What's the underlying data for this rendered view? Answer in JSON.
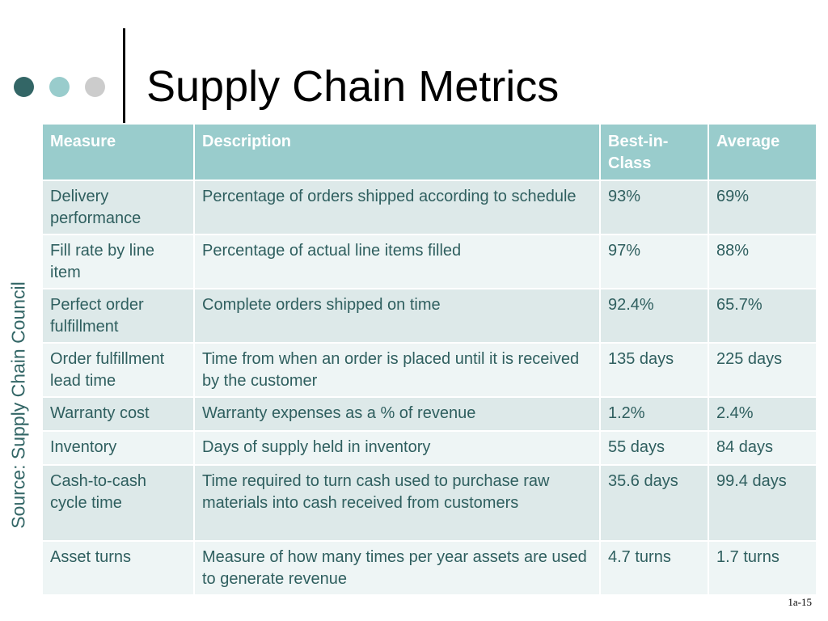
{
  "slide": {
    "title": "Supply Chain Metrics",
    "source": "Source: Supply Chain Council",
    "page_number": "1a-15",
    "colors": {
      "dot_dark": "#336666",
      "dot_mid": "#99cccc",
      "dot_light": "#cccccc",
      "header_bg": "#99cccc",
      "row_odd_bg": "#dde9e9",
      "row_even_bg": "#eef5f5",
      "body_text": "#2f5f5f"
    }
  },
  "table": {
    "headers": [
      "Measure",
      "Description",
      "Best-in-Class",
      "Average"
    ],
    "rows": [
      [
        "Delivery performance",
        "Percentage of orders shipped according to schedule",
        "93%",
        "69%"
      ],
      [
        "Fill rate by line item",
        "Percentage of actual line items filled",
        "97%",
        "88%"
      ],
      [
        "Perfect order fulfillment",
        "Complete orders shipped on time",
        "92.4%",
        "65.7%"
      ],
      [
        "Order fulfillment lead time",
        "Time from when an order is placed until it is received by the customer",
        "135 days",
        "225 days"
      ],
      [
        "Warranty cost",
        "Warranty expenses as a % of revenue",
        "1.2%",
        "2.4%"
      ],
      [
        "Inventory",
        "Days of supply held in inventory",
        "55 days",
        "84 days"
      ],
      [
        "Cash-to-cash cycle time",
        "Time required to turn cash used to purchase raw materials into cash received from customers",
        "35.6 days",
        "99.4 days"
      ],
      [
        "Asset turns",
        "Measure of how many times per year assets are used to generate revenue",
        "4.7 turns",
        "1.7 turns"
      ]
    ]
  }
}
